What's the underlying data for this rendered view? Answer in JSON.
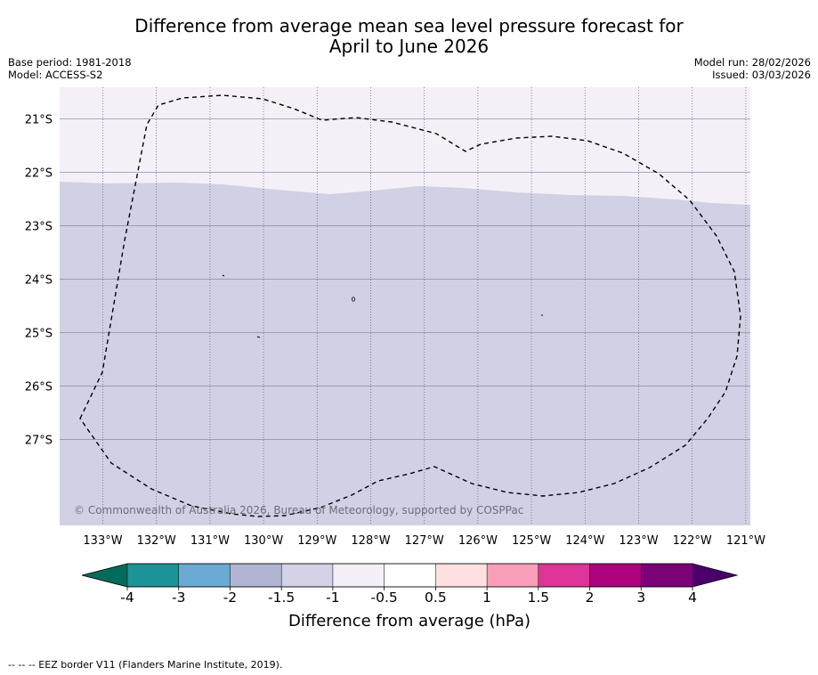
{
  "title": {
    "line1": "Difference from average mean sea level pressure forecast for",
    "line2": "April to June 2026"
  },
  "meta_left": {
    "base_period": "Base period: 1981-2018",
    "model": "Model: ACCESS-S2"
  },
  "meta_right": {
    "model_run": "Model run: 28/02/2026",
    "issued": "Issued: 03/03/2026"
  },
  "map": {
    "copyright": "© Commonwealth of Australia 2026, Bureau of Meteorology, supported by COSPPac",
    "lon_ticks": [
      "133°W",
      "132°W",
      "131°W",
      "130°W",
      "129°W",
      "128°W",
      "127°W",
      "126°W",
      "125°W",
      "124°W",
      "123°W",
      "122°W",
      "121°W"
    ],
    "lat_ticks": [
      "21°S",
      "22°S",
      "23°S",
      "24°S",
      "25°S",
      "26°S",
      "27°S"
    ],
    "regions": [
      {
        "category": "-0.5 to 0.5",
        "color": "#f5eff7",
        "description_area": "north"
      },
      {
        "category": "-1.5 to -1",
        "color": "#d1d1e5",
        "description_area": "south"
      }
    ]
  },
  "colorbar": {
    "title": "Difference from average (hPa)",
    "tick_labels": [
      "-4",
      "-3",
      "-2",
      "-1.5",
      "-1",
      "-0.5",
      "0.5",
      "1",
      "1.5",
      "2",
      "3",
      "4"
    ],
    "colors": [
      "#1b9497",
      "#6aaad3",
      "#b0b6d2",
      "#d3d2e6",
      "#f4eff7",
      "#ffffff",
      "#fde0df",
      "#f99eb8",
      "#de3498",
      "#ae027f",
      "#7b0177"
    ],
    "low_extend_color": "#016c5b",
    "high_extend_color": "#49006a"
  },
  "footnote": "-- -- -- EEZ border V11 (Flanders Marine Institute, 2019)."
}
